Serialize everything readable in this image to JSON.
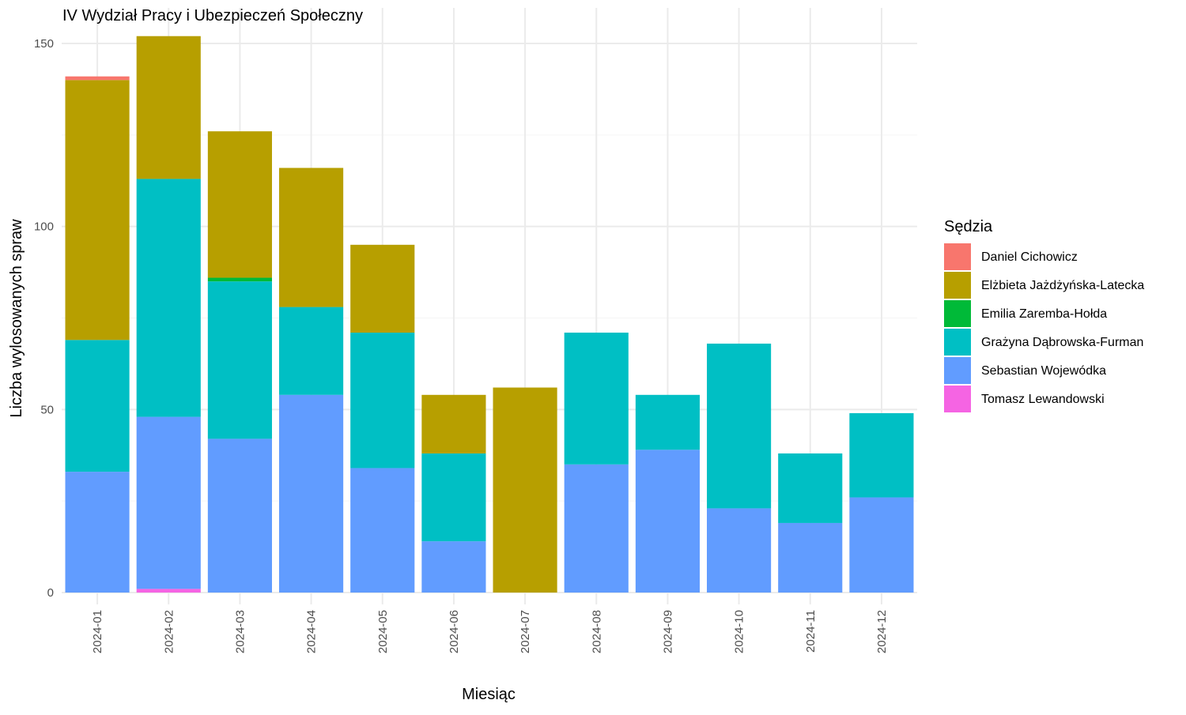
{
  "chart_data": {
    "type": "bar",
    "stacked": true,
    "title": "IV Wydział Pracy i Ubezpieczeń Społeczny",
    "xlabel": "Miesiąc",
    "ylabel": "Liczba wylosowanych spraw",
    "ylim": [
      0,
      160
    ],
    "yticks": [
      0,
      50,
      100,
      150
    ],
    "grid": true,
    "legend": {
      "title": "Sędzia",
      "placement": "right"
    },
    "categories": [
      "2024-01",
      "2024-02",
      "2024-03",
      "2024-04",
      "2024-05",
      "2024-06",
      "2024-07",
      "2024-08",
      "2024-09",
      "2024-10",
      "2024-11",
      "2024-12"
    ],
    "series": [
      {
        "name": "Daniel Cichowicz",
        "color": "#F8766D",
        "values": [
          1,
          0,
          0,
          0,
          0,
          0,
          0,
          0,
          0,
          0,
          0,
          0
        ]
      },
      {
        "name": "Elżbieta Jażdżyńska-Latecka",
        "color": "#B79F00",
        "values": [
          71,
          39,
          40,
          38,
          24,
          16,
          56,
          0,
          0,
          0,
          0,
          0
        ]
      },
      {
        "name": "Emilia Zaremba-Hołda",
        "color": "#00BA38",
        "values": [
          0,
          0,
          1,
          0,
          0,
          0,
          0,
          0,
          0,
          0,
          0,
          0
        ]
      },
      {
        "name": "Grażyna Dąbrowska-Furman",
        "color": "#00BFC4",
        "values": [
          36,
          65,
          43,
          24,
          37,
          24,
          0,
          36,
          15,
          45,
          19,
          23
        ]
      },
      {
        "name": "Sebastian Wojewódka",
        "color": "#619CFF",
        "values": [
          33,
          47,
          42,
          54,
          34,
          14,
          0,
          35,
          39,
          23,
          19,
          26
        ]
      },
      {
        "name": "Tomasz Lewandowski",
        "color": "#F564E3",
        "values": [
          0,
          1,
          0,
          0,
          0,
          0,
          0,
          0,
          0,
          0,
          0,
          0
        ]
      }
    ]
  }
}
